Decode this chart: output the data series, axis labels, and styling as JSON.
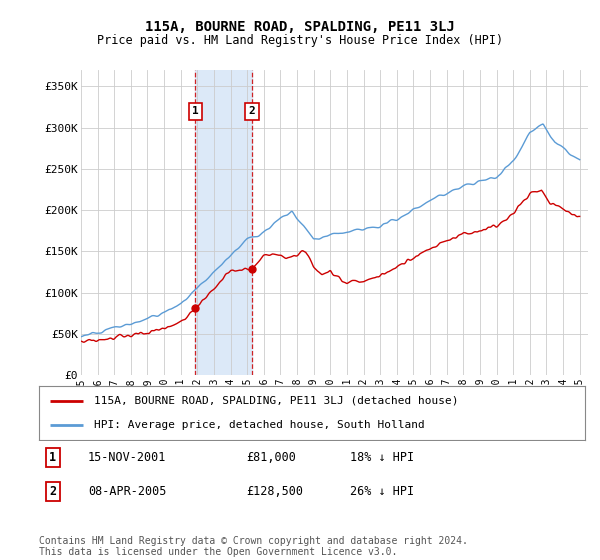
{
  "title": "115A, BOURNE ROAD, SPALDING, PE11 3LJ",
  "subtitle": "Price paid vs. HM Land Registry's House Price Index (HPI)",
  "legend_line1": "115A, BOURNE ROAD, SPALDING, PE11 3LJ (detached house)",
  "legend_line2": "HPI: Average price, detached house, South Holland",
  "transaction1_date": "15-NOV-2001",
  "transaction1_price": "£81,000",
  "transaction1_hpi": "18% ↓ HPI",
  "transaction1_year": 2001.88,
  "transaction1_value": 81000,
  "transaction2_date": "08-APR-2005",
  "transaction2_price": "£128,500",
  "transaction2_hpi": "26% ↓ HPI",
  "transaction2_year": 2005.28,
  "transaction2_value": 128500,
  "footer": "Contains HM Land Registry data © Crown copyright and database right 2024.\nThis data is licensed under the Open Government Licence v3.0.",
  "ylim": [
    0,
    370000
  ],
  "yticks": [
    0,
    50000,
    100000,
    150000,
    200000,
    250000,
    300000,
    350000
  ],
  "ytick_labels": [
    "£0",
    "£50K",
    "£100K",
    "£150K",
    "£200K",
    "£250K",
    "£300K",
    "£350K"
  ],
  "xlim_start": 1995.0,
  "xlim_end": 2025.5,
  "red_line_color": "#cc0000",
  "blue_line_color": "#5b9bd5",
  "shade_color": "#dce9f8",
  "vline_color": "#cc0000",
  "background_color": "#ffffff",
  "grid_color": "#cccccc"
}
